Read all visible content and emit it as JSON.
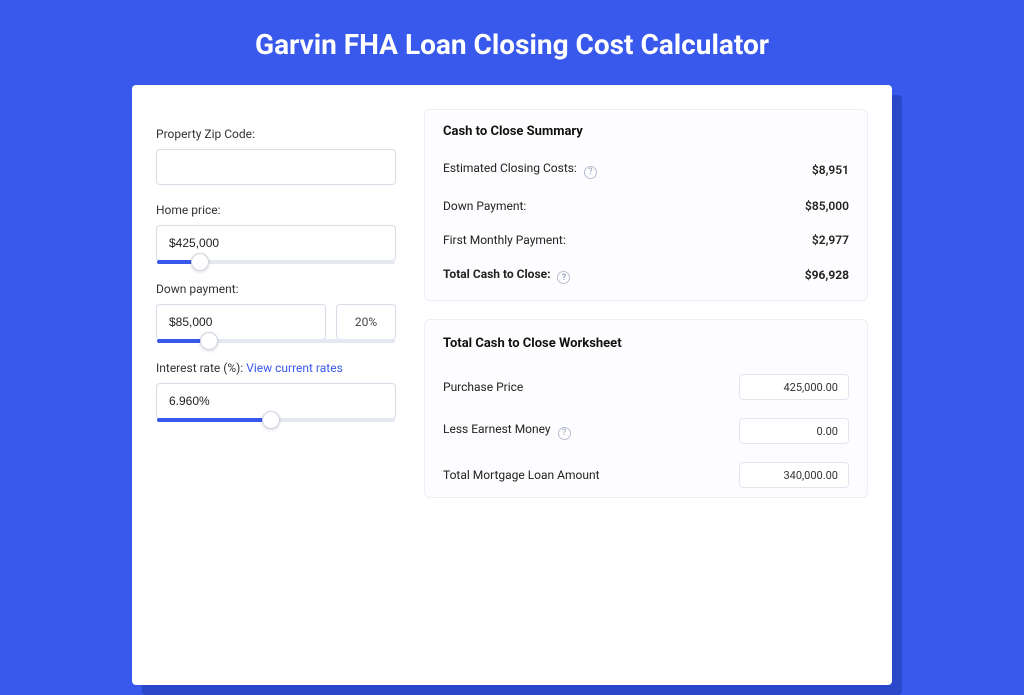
{
  "colors": {
    "page_bg": "#3859ec",
    "card_shadow": "#2a46c9",
    "card_bg": "#ffffff",
    "input_border": "#d8dce6",
    "panel_border": "#eceef5",
    "slider_track": "#e5e8f0",
    "slider_fill": "#3859ec",
    "link": "#3859ec",
    "text": "#222222"
  },
  "header": {
    "title": "Garvin FHA Loan Closing Cost Calculator"
  },
  "form": {
    "zip": {
      "label": "Property Zip Code:",
      "value": ""
    },
    "home_price": {
      "label": "Home price:",
      "value": "$425,000",
      "slider_pct": 18
    },
    "down_payment": {
      "label": "Down payment:",
      "value": "$85,000",
      "pct_value": "20%",
      "slider_pct": 22
    },
    "interest_rate": {
      "label_prefix": "Interest rate (%): ",
      "link_text": "View current rates",
      "value": "6.960%",
      "slider_pct": 48
    }
  },
  "summary": {
    "title": "Cash to Close Summary",
    "rows": [
      {
        "label": "Estimated Closing Costs:",
        "has_help": true,
        "value": "$8,951",
        "bold": false
      },
      {
        "label": "Down Payment:",
        "has_help": false,
        "value": "$85,000",
        "bold": false
      },
      {
        "label": "First Monthly Payment:",
        "has_help": false,
        "value": "$2,977",
        "bold": false
      },
      {
        "label": "Total Cash to Close:",
        "has_help": true,
        "value": "$96,928",
        "bold": true
      }
    ]
  },
  "worksheet": {
    "title": "Total Cash to Close Worksheet",
    "rows": [
      {
        "label": "Purchase Price",
        "has_help": false,
        "value": "425,000.00"
      },
      {
        "label": "Less Earnest Money",
        "has_help": true,
        "value": "0.00"
      },
      {
        "label": "Total Mortgage Loan Amount",
        "has_help": false,
        "value": "340,000.00"
      }
    ]
  }
}
